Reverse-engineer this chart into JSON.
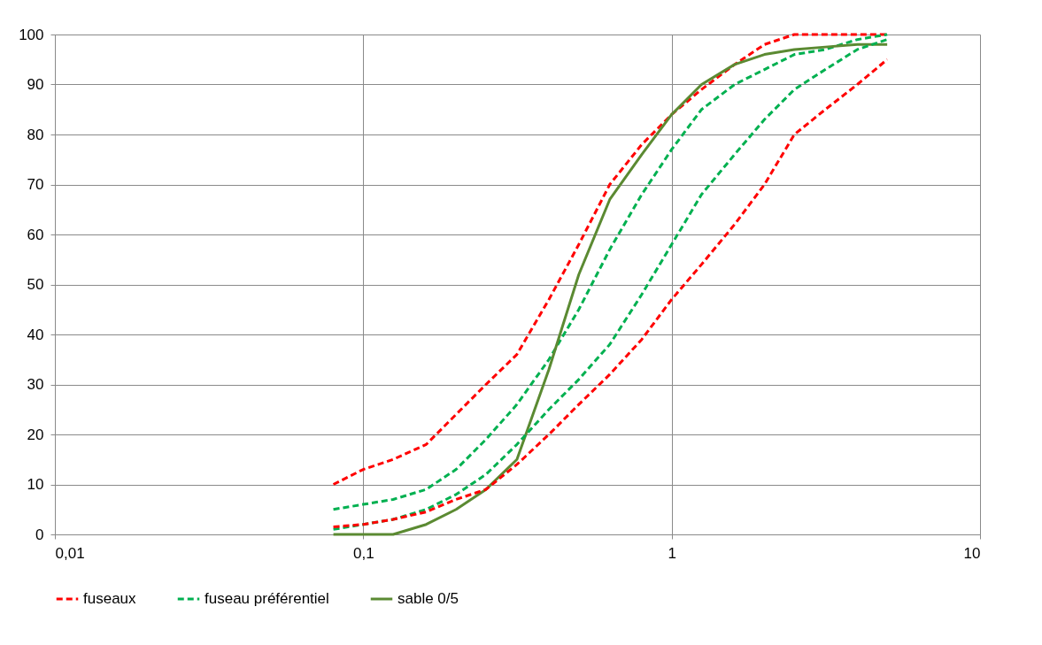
{
  "chart_data": {
    "type": "line",
    "log": "x",
    "xlim": [
      0.01,
      10
    ],
    "ylim": [
      0,
      100
    ],
    "xticks": [
      {
        "value": 0.01,
        "label": "0,01"
      },
      {
        "value": 0.1,
        "label": "0,1"
      },
      {
        "value": 1,
        "label": "1"
      },
      {
        "value": 10,
        "label": "10"
      }
    ],
    "yticks": [
      0,
      10,
      20,
      30,
      40,
      50,
      60,
      70,
      80,
      90,
      100
    ],
    "grid": true,
    "legend": "bottom",
    "marker": "none",
    "x": [
      0.08,
      0.1,
      0.125,
      0.16,
      0.2,
      0.25,
      0.315,
      0.4,
      0.5,
      0.63,
      0.8,
      1,
      1.25,
      1.6,
      2,
      2.5,
      3.15,
      4,
      5
    ],
    "series": [
      {
        "name": "fuseaux",
        "color": "#ff0000",
        "line_style": "dashed",
        "values": [
          10,
          13,
          15,
          18,
          24,
          30,
          36,
          47,
          58,
          70,
          78,
          84,
          89,
          94,
          98,
          100,
          100,
          100,
          100
        ]
      },
      {
        "color": "#ff0000",
        "line_style": "dashed",
        "values": [
          1.5,
          2,
          3,
          4.5,
          7,
          9,
          14,
          20,
          26,
          32,
          39,
          47,
          54,
          62,
          70,
          80,
          85,
          90,
          95
        ]
      },
      {
        "name": "fuseau préférentiel",
        "color": "#00b050",
        "line_style": "dashed",
        "values": [
          5,
          6,
          7,
          9,
          13,
          19,
          26,
          35,
          45,
          57,
          68,
          77,
          85,
          90,
          93,
          96,
          97,
          99,
          100
        ]
      },
      {
        "color": "#00b050",
        "line_style": "dashed",
        "values": [
          1,
          2,
          3,
          5,
          8,
          12,
          18,
          25,
          31,
          38,
          48,
          58,
          68,
          76,
          83,
          89,
          93,
          97,
          99
        ]
      },
      {
        "name": "sable 0/5",
        "color": "#5b8a32",
        "line_style": "solid",
        "values": [
          0,
          0,
          0,
          2,
          5,
          9,
          15,
          33,
          52,
          67,
          76,
          84,
          90,
          94,
          96,
          97,
          97.5,
          98,
          98
        ]
      }
    ]
  }
}
